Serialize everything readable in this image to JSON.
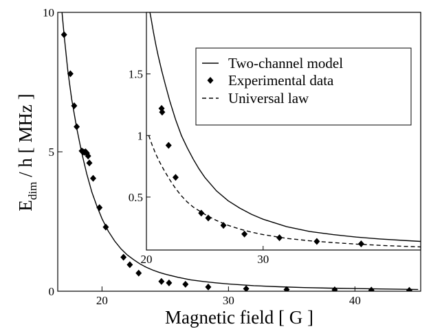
{
  "chart_data": [
    {
      "id": "main",
      "type": "scatter",
      "xlabel": "Magnetic field [ G ]",
      "ylabel": {
        "main": "E",
        "sub": "dim",
        "rest": " / h  [ MHz ]"
      },
      "xlim": [
        16.5,
        45.2
      ],
      "ylim": [
        0,
        10
      ],
      "xticks": [
        20,
        30,
        40
      ],
      "yticks": [
        0,
        5,
        10
      ],
      "grid": false,
      "series": [
        {
          "name": "Two-channel model",
          "kind": "line",
          "style": "solid",
          "x": [
            16.8,
            17.0,
            17.3,
            17.6,
            18.0,
            18.4,
            18.8,
            19.2,
            19.6,
            20.0,
            20.5,
            21.0,
            21.5,
            22.0,
            22.5,
            23.0,
            23.5,
            24.0,
            24.5,
            25.0,
            26.0,
            27.0,
            28.0,
            29.0,
            30.0,
            32.0,
            34.0,
            36.0,
            38.0,
            40.0,
            42.0,
            45.0
          ],
          "y": [
            10.2,
            9.2,
            7.9,
            6.9,
            5.85,
            4.95,
            4.2,
            3.55,
            3.05,
            2.6,
            2.15,
            1.8,
            1.52,
            1.3,
            1.13,
            0.98,
            0.86,
            0.76,
            0.68,
            0.61,
            0.5,
            0.41,
            0.35,
            0.3,
            0.26,
            0.2,
            0.16,
            0.13,
            0.11,
            0.095,
            0.082,
            0.065
          ]
        },
        {
          "name": "Experimental data",
          "kind": "points",
          "x": [
            17.0,
            17.5,
            17.8,
            18.0,
            18.4,
            18.5,
            18.6,
            18.7,
            18.8,
            18.9,
            19.0,
            19.3,
            19.8,
            20.3,
            21.7,
            22.2,
            22.9,
            24.7,
            25.3,
            26.6,
            28.4,
            31.4,
            34.6,
            38.4,
            41.3,
            44.3
          ],
          "y": [
            9.2,
            7.8,
            6.65,
            5.9,
            5.03,
            5.0,
            4.98,
            5.0,
            4.95,
            4.85,
            4.6,
            4.05,
            3.0,
            2.3,
            1.22,
            0.95,
            0.65,
            0.35,
            0.3,
            0.25,
            0.15,
            0.09,
            0.06,
            0.05,
            0.04,
            0.03
          ]
        }
      ]
    },
    {
      "id": "inset",
      "type": "scatter",
      "xlim": [
        20,
        43.5
      ],
      "ylim": [
        0.07,
        2.0
      ],
      "xticks": [
        20,
        30
      ],
      "yticks": [
        0.5,
        1,
        1.5
      ],
      "grid": false,
      "legend": {
        "position": "top-right",
        "entries": [
          {
            "label": "Two-channel model",
            "symbol": "solid-line"
          },
          {
            "label": "Experimental data",
            "symbol": "diamond"
          },
          {
            "label": "Universal law",
            "symbol": "dashed-line"
          }
        ]
      },
      "series": [
        {
          "name": "Two-channel model",
          "kind": "line",
          "style": "solid",
          "x": [
            20.2,
            20.4,
            20.6,
            20.8,
            21.0,
            21.3,
            21.6,
            22.0,
            22.5,
            23.0,
            23.5,
            24.0,
            24.5,
            25.0,
            26.0,
            27.0,
            28.0,
            29.0,
            30.0,
            32.0,
            34.0,
            36.0,
            38.0,
            40.0,
            42.0,
            43.5
          ],
          "y": [
            2.05,
            1.95,
            1.84,
            1.74,
            1.65,
            1.53,
            1.42,
            1.28,
            1.13,
            1.0,
            0.9,
            0.81,
            0.73,
            0.66,
            0.55,
            0.47,
            0.41,
            0.36,
            0.32,
            0.26,
            0.22,
            0.195,
            0.175,
            0.16,
            0.148,
            0.14
          ]
        },
        {
          "name": "Experimental data",
          "kind": "points",
          "x": [
            21.3,
            21.35,
            21.9,
            22.5,
            24.7,
            25.3,
            26.6,
            28.4,
            31.4,
            34.6,
            38.4
          ],
          "y": [
            1.22,
            1.19,
            0.92,
            0.66,
            0.37,
            0.33,
            0.27,
            0.2,
            0.17,
            0.14,
            0.12
          ]
        },
        {
          "name": "Universal law",
          "kind": "line",
          "style": "dashed",
          "x": [
            20.2,
            20.5,
            20.8,
            21.1,
            21.5,
            22.0,
            22.5,
            23.0,
            23.5,
            24.0,
            25.0,
            26.0,
            27.0,
            28.0,
            29.0,
            30.0,
            32.0,
            34.0,
            36.0,
            38.0,
            40.0,
            42.0,
            43.5
          ],
          "y": [
            1.0,
            0.92,
            0.85,
            0.79,
            0.72,
            0.64,
            0.57,
            0.51,
            0.46,
            0.42,
            0.36,
            0.31,
            0.27,
            0.24,
            0.215,
            0.195,
            0.165,
            0.145,
            0.13,
            0.118,
            0.108,
            0.1,
            0.095
          ]
        }
      ]
    }
  ]
}
